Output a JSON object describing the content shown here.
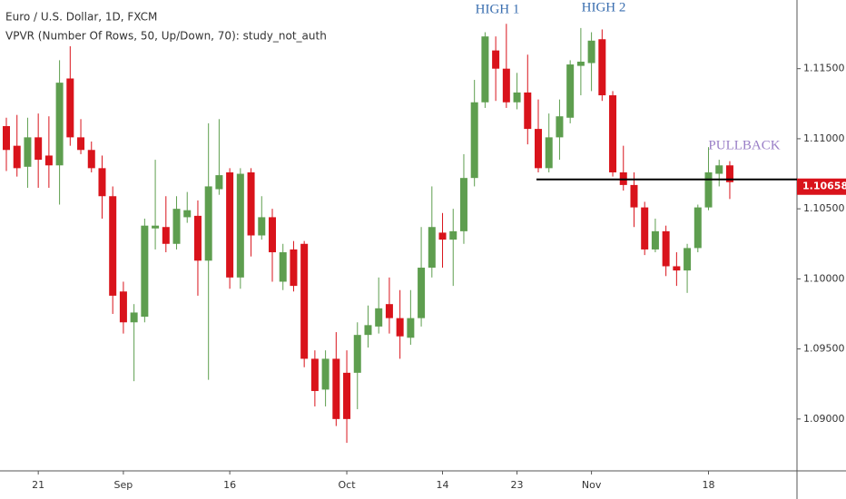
{
  "chart_data": {
    "type": "candlestick",
    "title": "Euro / U.S. Dollar, 1D, FXCM",
    "subtitle": "VPVR (Number Of Rows, 50, Up/Down, 70): study_not_auth",
    "annotations": [
      "HIGH 1",
      "HIGH 2",
      "PULLBACK"
    ],
    "categories": [
      null,
      null,
      null,
      "21",
      null,
      null,
      null,
      null,
      null,
      null,
      null,
      "Sep",
      null,
      null,
      null,
      null,
      null,
      null,
      null,
      null,
      null,
      "16",
      null,
      null,
      null,
      null,
      null,
      null,
      null,
      null,
      null,
      null,
      "Oct",
      null,
      null,
      null,
      null,
      null,
      null,
      null,
      null,
      "14",
      null,
      null,
      null,
      null,
      null,
      null,
      "23",
      null,
      null,
      null,
      null,
      null,
      null,
      "Nov",
      null,
      null,
      null,
      null,
      null,
      null,
      null,
      null,
      null,
      null,
      "18",
      null,
      null
    ],
    "open": [
      1.1109,
      1.1095,
      1.108,
      1.1101,
      1.1088,
      1.1081,
      1.1143,
      1.1101,
      1.1092,
      1.1079,
      1.1059,
      1.0991,
      1.0969,
      1.0973,
      1.1036,
      1.1037,
      1.1025,
      1.1044,
      1.1045,
      1.1013,
      1.1064,
      1.1076,
      1.1001,
      1.1076,
      1.1031,
      1.1044,
      1.0998,
      1.1021,
      1.1025,
      1.0943,
      1.0921,
      1.0943,
      1.0933,
      1.0933,
      1.096,
      1.0966,
      1.0982,
      1.0972,
      1.0958,
      1.0972,
      1.1008,
      1.1033,
      1.1028,
      1.1034,
      1.1072,
      1.1126,
      1.1163,
      1.115,
      1.1126,
      1.1133,
      1.1107,
      1.1079,
      1.1101,
      1.1115,
      1.1152,
      1.1154,
      1.1171,
      1.1131,
      1.1076,
      1.1067,
      1.1051,
      1.1021,
      1.1034,
      1.1009,
      1.1006,
      1.1022,
      1.1051,
      1.1075,
      1.1081
    ],
    "high": [
      1.1115,
      1.1117,
      1.1115,
      1.1118,
      1.1116,
      1.1156,
      1.1166,
      1.1114,
      1.1098,
      1.1088,
      1.1066,
      1.0998,
      1.0982,
      1.1043,
      1.1085,
      1.1059,
      1.1059,
      1.1062,
      1.1056,
      1.1111,
      1.1114,
      1.1079,
      1.1079,
      1.1079,
      1.1059,
      1.105,
      1.1025,
      1.1027,
      1.1027,
      1.0949,
      1.0949,
      1.0962,
      1.0949,
      1.0969,
      1.0981,
      1.1001,
      1.1001,
      1.0992,
      1.0992,
      1.1037,
      1.1066,
      1.1047,
      1.105,
      1.1089,
      1.1142,
      1.1176,
      1.1173,
      1.1182,
      1.1147,
      1.116,
      1.1128,
      1.1118,
      1.1128,
      1.1156,
      1.1179,
      1.1176,
      1.1178,
      1.1134,
      1.1095,
      1.1076,
      1.1055,
      1.1043,
      1.1038,
      1.1019,
      1.1025,
      1.1053,
      1.1094,
      1.1085,
      1.1084
    ],
    "low": [
      1.1077,
      1.1073,
      1.1065,
      1.1065,
      1.1065,
      1.1053,
      1.1095,
      1.1089,
      1.1076,
      1.1043,
      1.0975,
      1.0961,
      1.0927,
      1.0969,
      1.1021,
      1.1019,
      1.1021,
      1.104,
      1.0988,
      1.0928,
      1.106,
      1.0993,
      1.0993,
      1.1016,
      1.1028,
      1.0998,
      1.0992,
      1.0991,
      1.0937,
      1.0909,
      1.0909,
      1.0895,
      1.0883,
      1.0907,
      1.0951,
      1.0961,
      1.0961,
      1.0943,
      1.0953,
      1.0966,
      1.1001,
      1.1008,
      1.0995,
      1.1025,
      1.1066,
      1.1122,
      1.1127,
      1.1122,
      1.1121,
      1.1096,
      1.1076,
      1.1076,
      1.1085,
      1.1111,
      1.1131,
      1.1134,
      1.1127,
      1.1073,
      1.1063,
      1.1037,
      1.1017,
      1.1019,
      1.1002,
      1.0995,
      1.099,
      1.1019,
      1.1049,
      1.1066,
      1.1057
    ],
    "close": [
      1.1092,
      1.1079,
      1.1101,
      1.1085,
      1.1081,
      1.114,
      1.1101,
      1.1092,
      1.1079,
      1.1059,
      1.0988,
      1.0969,
      1.0976,
      1.1038,
      1.1038,
      1.1025,
      1.105,
      1.1049,
      1.1013,
      1.1066,
      1.1074,
      1.1001,
      1.1075,
      1.1031,
      1.1044,
      1.1019,
      1.1019,
      1.0995,
      1.0943,
      1.092,
      1.0943,
      1.09,
      1.09,
      1.096,
      1.0967,
      1.0979,
      1.0972,
      1.0959,
      1.0972,
      1.1008,
      1.1037,
      1.1028,
      1.1034,
      1.1072,
      1.1126,
      1.1173,
      1.115,
      1.1126,
      1.1133,
      1.1107,
      1.1079,
      1.1101,
      1.1116,
      1.1153,
      1.1155,
      1.117,
      1.1131,
      1.1076,
      1.1067,
      1.1051,
      1.1021,
      1.1034,
      1.1009,
      1.1006,
      1.1022,
      1.1051,
      1.1076,
      1.1081,
      1.1069
    ],
    "up_color": "#5e9e4f",
    "down_color": "#d9131b",
    "support_line": 1.1071,
    "last_price": 1.10658,
    "ylim": [
      1.0863,
      1.1199
    ],
    "yticks": [
      {
        "value": 1.09,
        "label": "1.09000"
      },
      {
        "value": 1.095,
        "label": "1.09500"
      },
      {
        "value": 1.1,
        "label": "1.10000"
      },
      {
        "value": 1.105,
        "label": "1.10500"
      },
      {
        "value": 1.11,
        "label": "1.11000"
      },
      {
        "value": 1.115,
        "label": "1.11500"
      }
    ]
  }
}
